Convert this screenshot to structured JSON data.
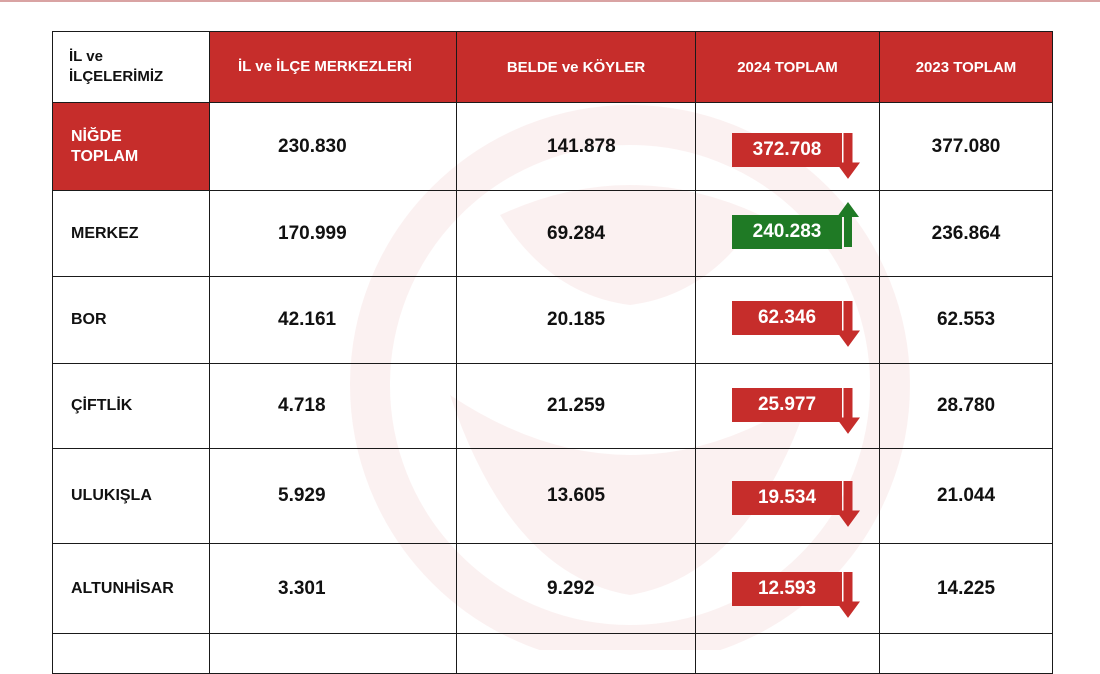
{
  "colors": {
    "accent_red": "#c62d2b",
    "increase_green": "#1f7a25"
  },
  "headers": [
    "İL ve İLÇELERİMİZ",
    "İL ve İLÇE MERKEZLERİ",
    "BELDE ve KÖYLER",
    "2024 TOPLAM",
    "2023 TOPLAM"
  ],
  "header_first": {
    "line1": "İL ve",
    "line2": "İLÇELERİMİZ"
  },
  "rows": [
    {
      "name_line1": "NİĞDE",
      "name_line2": "TOPLAM",
      "merkez": "230.830",
      "belde": "141.878",
      "y2024": "372.708",
      "y2023": "377.080",
      "trend": "down"
    },
    {
      "name_line1": "MERKEZ",
      "name_line2": "",
      "merkez": "170.999",
      "belde": "69.284",
      "y2024": "240.283",
      "y2023": "236.864",
      "trend": "up"
    },
    {
      "name_line1": "BOR",
      "name_line2": "",
      "merkez": "42.161",
      "belde": "20.185",
      "y2024": "62.346",
      "y2023": "62.553",
      "trend": "down"
    },
    {
      "name_line1": "ÇİFTLİK",
      "name_line2": "",
      "merkez": "4.718",
      "belde": "21.259",
      "y2024": "25.977",
      "y2023": "28.780",
      "trend": "down"
    },
    {
      "name_line1": "ULUKIŞLA",
      "name_line2": "",
      "merkez": "5.929",
      "belde": "13.605",
      "y2024": "19.534",
      "y2023": "21.044",
      "trend": "down"
    },
    {
      "name_line1": "ALTUNHİSAR",
      "name_line2": "",
      "merkez": "3.301",
      "belde": "9.292",
      "y2024": "12.593",
      "y2023": "14.225",
      "trend": "down"
    }
  ]
}
